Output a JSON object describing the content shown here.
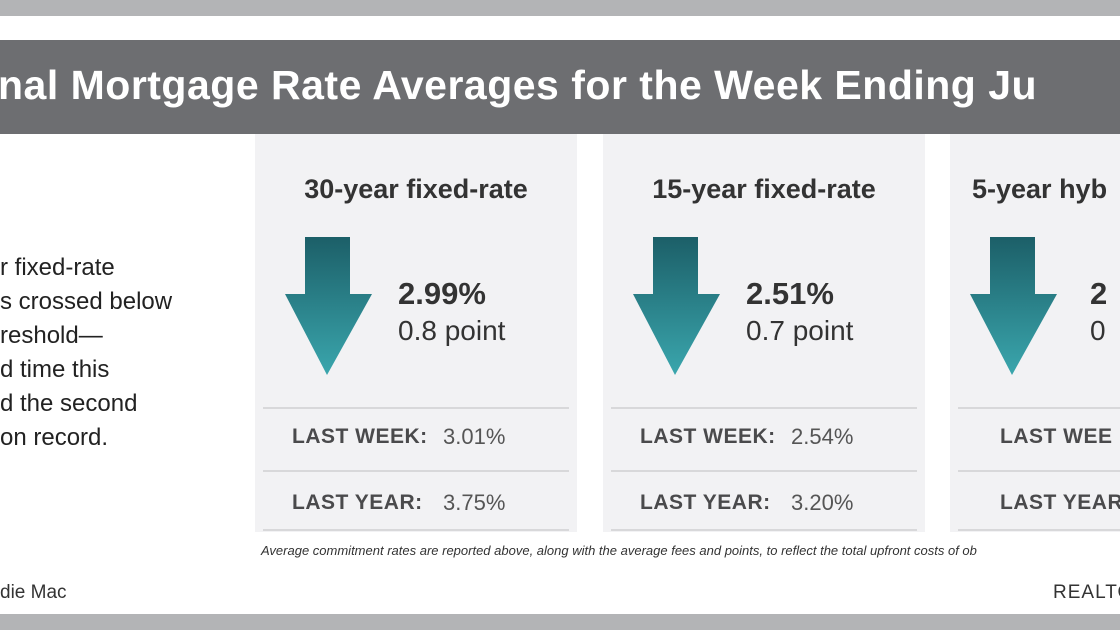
{
  "header": {
    "title": "nal Mortgage Rate Averages for the Week Ending Ju"
  },
  "intro": {
    "lines": [
      "r fixed-rate",
      "s crossed below",
      "reshold—",
      "d time this",
      "d the second",
      "on record."
    ]
  },
  "cards": [
    {
      "heading": "30-year fixed-rate",
      "rate": "2.99%",
      "points": "0.8 point",
      "last_week_label": "LAST WEEK:",
      "last_week": "3.01%",
      "last_year_label": "LAST YEAR:",
      "last_year": "3.75%"
    },
    {
      "heading": "15-year fixed-rate",
      "rate": "2.51%",
      "points": "0.7 point",
      "last_week_label": "LAST WEEK:",
      "last_week": "2.54%",
      "last_year_label": "LAST YEAR:",
      "last_year": "3.20%"
    },
    {
      "heading": "5-year hyb",
      "rate": "2",
      "points": "0",
      "last_week_label": "LAST WEE",
      "last_week": "",
      "last_year_label": "LAST YEAR",
      "last_year": ""
    }
  ],
  "footnote": "Average commitment rates are reported above, along with the average fees and points, to reflect the total upfront costs of ob",
  "source": "die Mac",
  "brand": "REALTO"
}
